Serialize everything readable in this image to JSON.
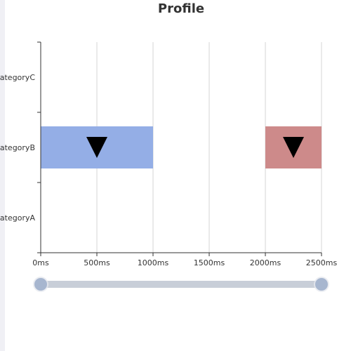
{
  "chart_data": {
    "type": "profile",
    "title": "Profile",
    "categories": [
      "categoryA",
      "categoryB",
      "categoryC"
    ],
    "x_tick_labels": [
      "0ms",
      "500ms",
      "1000ms",
      "1500ms",
      "2000ms",
      "2500ms"
    ],
    "xlim": [
      0,
      2500
    ],
    "grid": true,
    "bars": [
      {
        "category": "categoryB",
        "start": 0,
        "end": 1000,
        "color": "#94aee6"
      },
      {
        "category": "categoryB",
        "start": 2000,
        "end": 2500,
        "color": "#cd8a8a"
      }
    ],
    "markers": [
      {
        "category": "categoryB",
        "x": 500,
        "shape": "triangle-down",
        "color": "#000000"
      },
      {
        "category": "categoryB",
        "x": 2250,
        "shape": "triangle-down",
        "color": "#000000"
      }
    ],
    "datazoom": {
      "start": 0,
      "end": 100
    }
  }
}
